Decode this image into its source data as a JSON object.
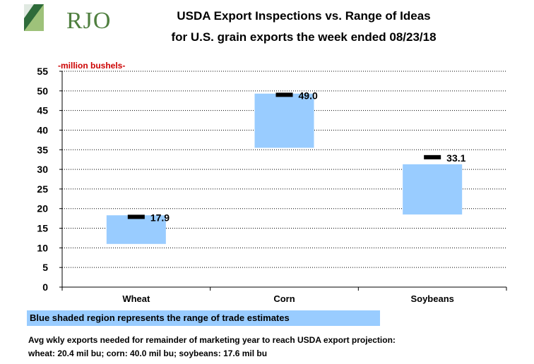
{
  "header": {
    "logo_text": "RJO",
    "title_line1": "USDA Export Inspections vs. Range of Ideas",
    "title_line2": "for U.S. grain exports the week ended 08/23/18"
  },
  "colors": {
    "range_fill": "#99ccff",
    "actual_marker": "#000000",
    "unit_label": "#cc0000",
    "logo_green": "#4f7f3f"
  },
  "chart_data": {
    "type": "bar",
    "unit_label": "-million bushels-",
    "categories": [
      "Wheat",
      "Corn",
      "Soybeans"
    ],
    "range_low": [
      11.0,
      35.5,
      18.5
    ],
    "range_high": [
      18.3,
      49.3,
      31.3
    ],
    "actual": [
      17.9,
      49.0,
      33.1
    ],
    "actual_labels": [
      "17.9",
      "49.0",
      "33.1"
    ],
    "ylim": [
      0,
      55
    ],
    "yticks": [
      0,
      5,
      10,
      15,
      20,
      25,
      30,
      35,
      40,
      45,
      50,
      55
    ],
    "grid": "horizontal dotted"
  },
  "legend": {
    "text": "Blue shaded region represents the range of trade estimates"
  },
  "notes": {
    "line1": "Avg wkly exports needed for remainder of marketing year to reach USDA export projection:",
    "line2": "wheat: 20.4 mil bu; corn: 40.0 mil bu; soybeans: 17.6 mil bu"
  }
}
